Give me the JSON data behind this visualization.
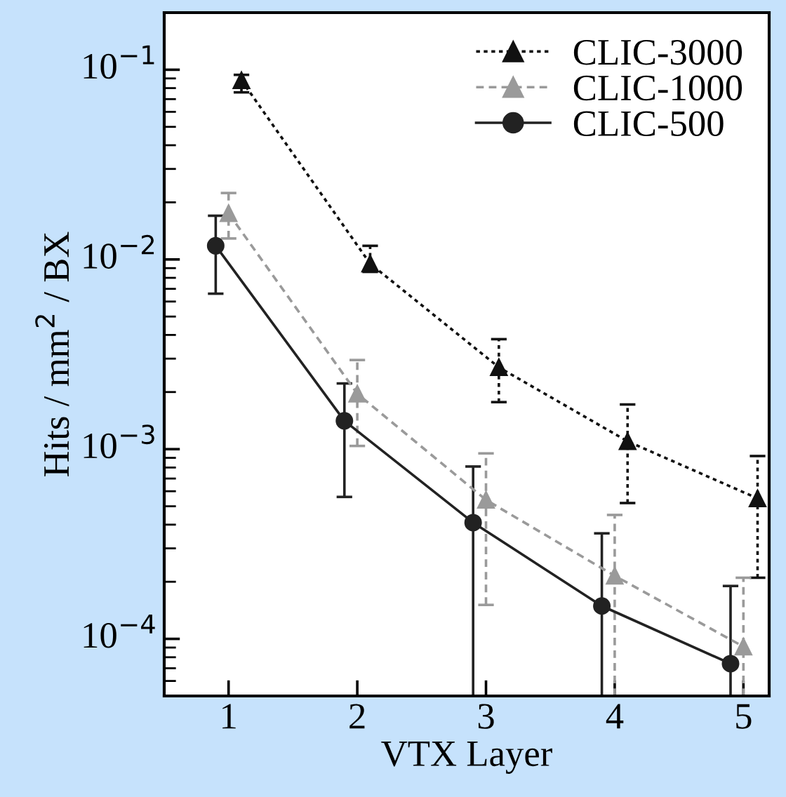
{
  "chart_data": {
    "type": "line",
    "xlabel": "VTX Layer",
    "ylabel": "Hits / mm$^{2}$ / BX",
    "log": "y",
    "xlim": [
      0.5,
      5.2
    ],
    "xticks": [
      1,
      2,
      3,
      4,
      5
    ],
    "ylim": [
      5e-05,
      0.2
    ],
    "yticks": [
      {
        "value": 0.0001,
        "label": "10$^{−4}$"
      },
      {
        "value": 0.001,
        "label": "10$^{−3}$"
      },
      {
        "value": 0.01,
        "label": "10$^{−2}$"
      },
      {
        "value": 0.1,
        "label": "10$^{−1}$"
      }
    ],
    "grid": false,
    "legend": "top right",
    "series": [
      {
        "name": "CLIC-3000",
        "color": "#111111",
        "marker": "triangle",
        "line_style": "dotted",
        "x": [
          1.1,
          2.1,
          3.1,
          4.1,
          5.11
        ],
        "values": [
          0.088,
          0.0095,
          0.0027,
          0.0011,
          0.00055
        ],
        "errors": [
          [
            0.076,
            0.094
          ],
          [
            0.0086,
            0.0118
          ],
          [
            0.00177,
            0.0038
          ],
          [
            0.00052,
            0.00172
          ],
          [
            0.00021,
            0.00092
          ]
        ]
      },
      {
        "name": "CLIC-1000",
        "color": "#9a9a9a",
        "marker": "triangle",
        "line_style": "dashed",
        "x": [
          1,
          2,
          3,
          4,
          5
        ],
        "values": [
          0.0175,
          0.00196,
          0.00054,
          0.000215,
          9.1e-05
        ],
        "errors": [
          [
            0.0129,
            0.0224
          ],
          [
            0.00104,
            0.00295
          ],
          [
            0.000151,
            0.00095
          ],
          [
            5e-05,
            0.00045
          ],
          [
            5e-05,
            0.00021
          ]
        ]
      },
      {
        "name": "CLIC-500",
        "color": "#222222",
        "marker": "circle",
        "line_style": "solid",
        "x": [
          0.9,
          1.9,
          2.9,
          3.9,
          4.9
        ],
        "values": [
          0.0118,
          0.00141,
          0.00041,
          0.000149,
          7.4e-05
        ],
        "errors": [
          [
            0.0066,
            0.017
          ],
          [
            0.00056,
            0.00222
          ],
          [
            5e-05,
            0.00081
          ],
          [
            5e-05,
            0.00036
          ],
          [
            5e-05,
            0.00019
          ]
        ]
      }
    ]
  }
}
